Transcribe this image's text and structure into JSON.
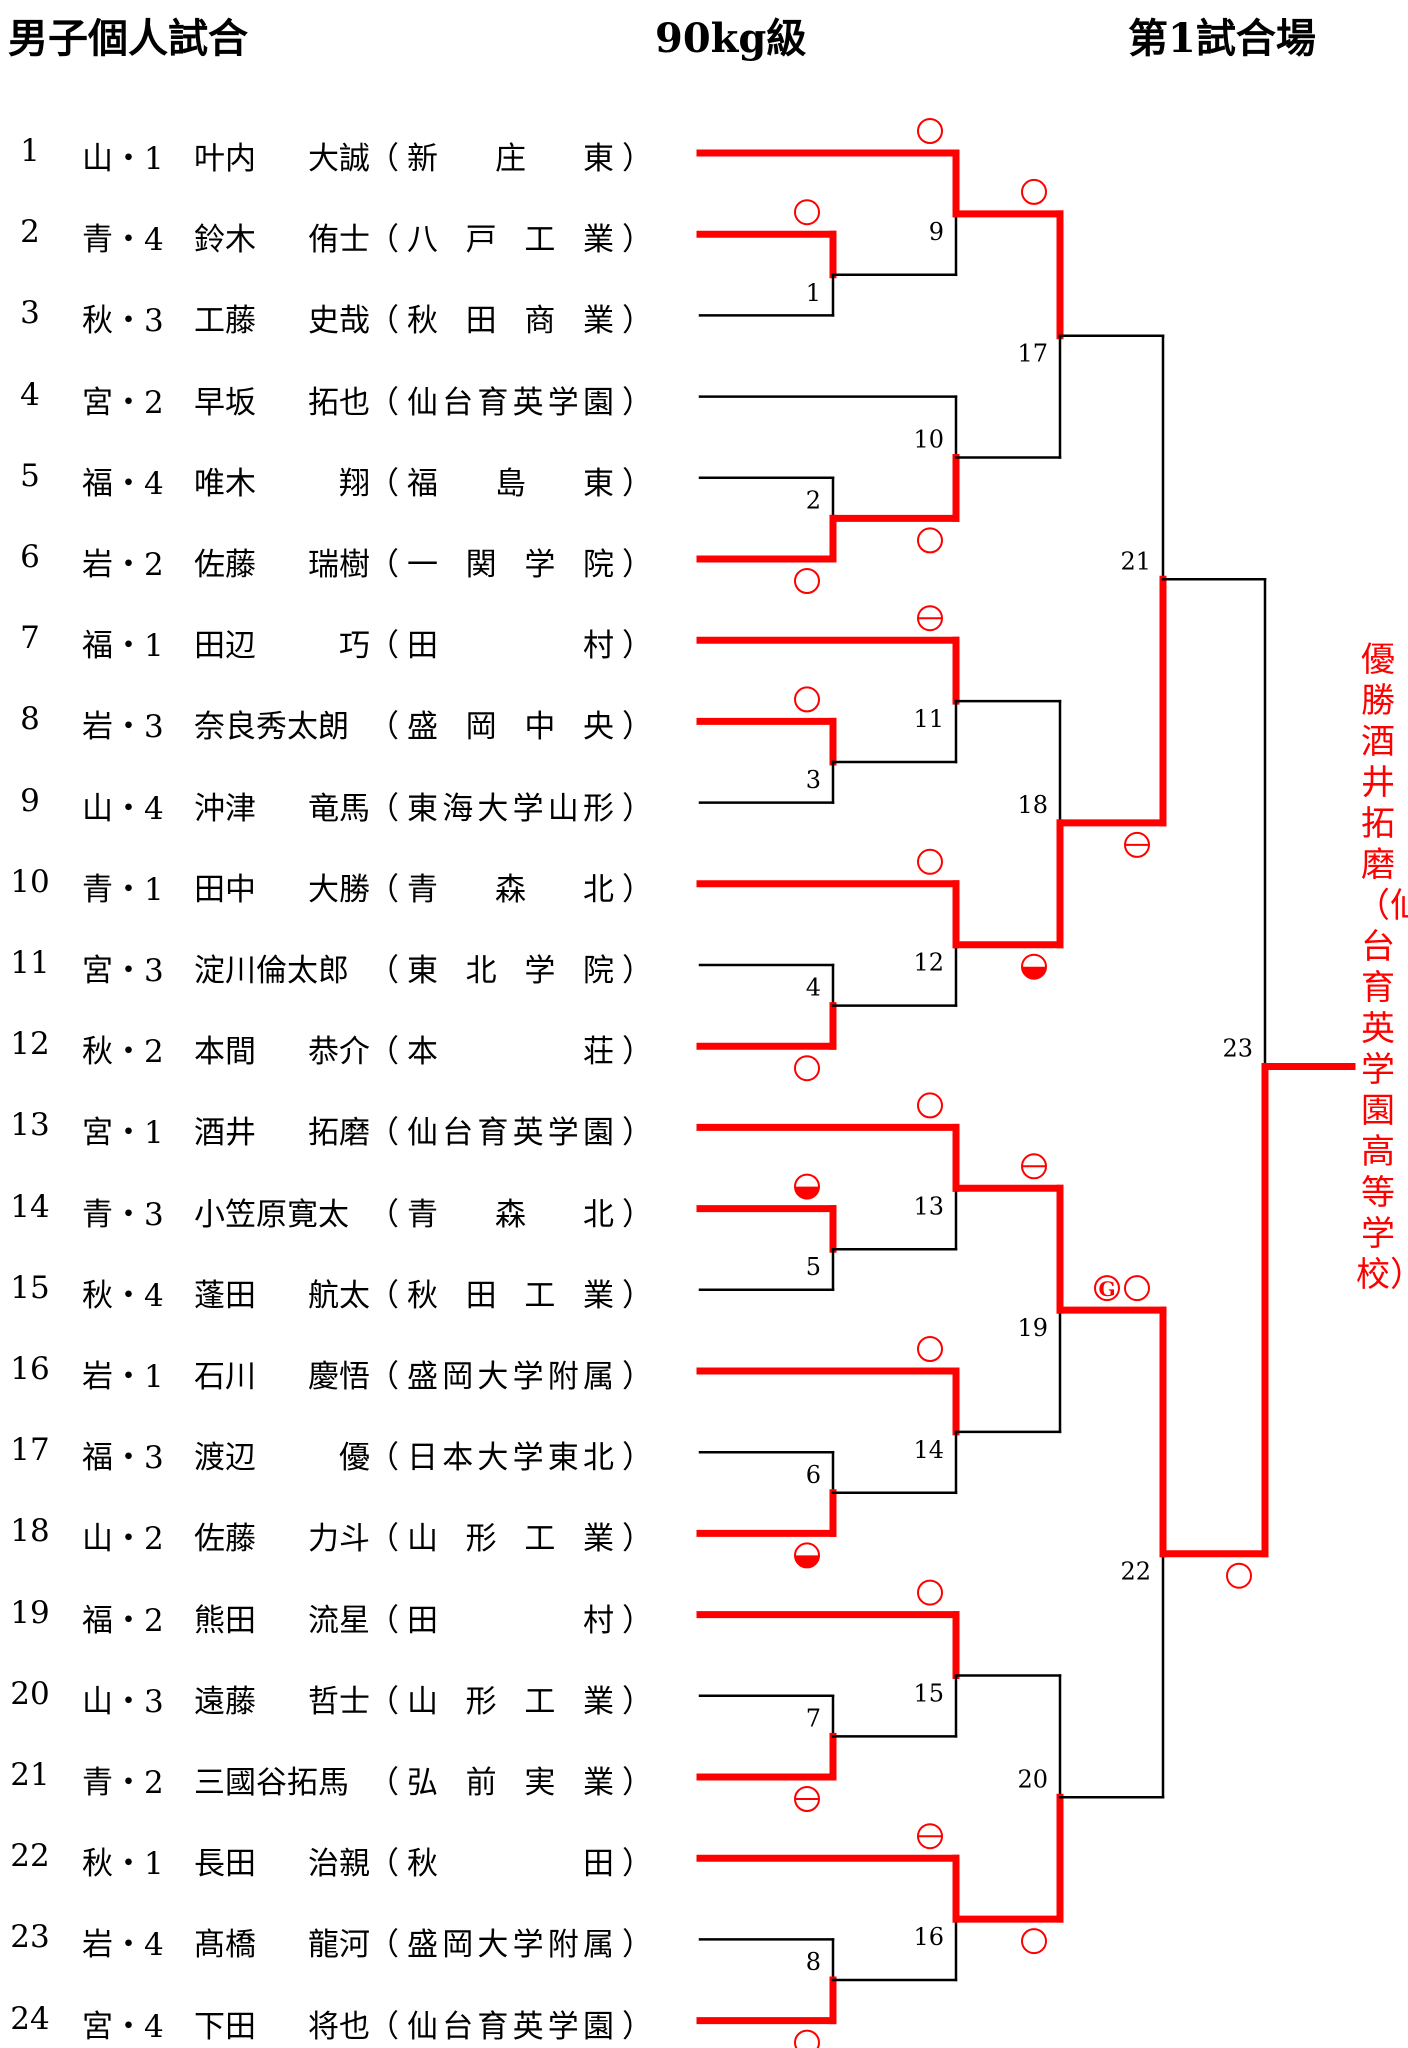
{
  "header": {
    "event": "男子個人試合",
    "weight_class": "90kg級",
    "venue": "第1試合場"
  },
  "players": [
    {
      "no": "1",
      "pref": "山・1",
      "name": [
        "叶内",
        "大誠"
      ],
      "school": [
        "新",
        "庄",
        "東"
      ]
    },
    {
      "no": "2",
      "pref": "青・4",
      "name": [
        "鈴木",
        "侑士"
      ],
      "school": [
        "八",
        "戸",
        "工",
        "業"
      ]
    },
    {
      "no": "3",
      "pref": "秋・3",
      "name": [
        "工藤",
        "史哉"
      ],
      "school": [
        "秋",
        "田",
        "商",
        "業"
      ]
    },
    {
      "no": "4",
      "pref": "宮・2",
      "name": [
        "早坂",
        "拓也"
      ],
      "school": [
        "仙",
        "台",
        "育",
        "英",
        "学",
        "園"
      ]
    },
    {
      "no": "5",
      "pref": "福・4",
      "name": [
        "唯木",
        "翔"
      ],
      "school": [
        "福",
        "島",
        "東"
      ]
    },
    {
      "no": "6",
      "pref": "岩・2",
      "name": [
        "佐藤",
        "瑞樹"
      ],
      "school": [
        "一",
        "関",
        "学",
        "院"
      ]
    },
    {
      "no": "7",
      "pref": "福・1",
      "name": [
        "田辺",
        "巧"
      ],
      "school": [
        "田",
        "村"
      ]
    },
    {
      "no": "8",
      "pref": "岩・3",
      "name": [
        "奈良秀太朗"
      ],
      "school": [
        "盛",
        "岡",
        "中",
        "央"
      ]
    },
    {
      "no": "9",
      "pref": "山・4",
      "name": [
        "沖津",
        "竜馬"
      ],
      "school": [
        "東",
        "海",
        "大",
        "学",
        "山",
        "形"
      ]
    },
    {
      "no": "10",
      "pref": "青・1",
      "name": [
        "田中",
        "大勝"
      ],
      "school": [
        "青",
        "森",
        "北"
      ]
    },
    {
      "no": "11",
      "pref": "宮・3",
      "name": [
        "淀川倫太郎"
      ],
      "school": [
        "東",
        "北",
        "学",
        "院"
      ]
    },
    {
      "no": "12",
      "pref": "秋・2",
      "name": [
        "本間",
        "恭介"
      ],
      "school": [
        "本",
        "荘"
      ]
    },
    {
      "no": "13",
      "pref": "宮・1",
      "name": [
        "酒井",
        "拓磨"
      ],
      "school": [
        "仙",
        "台",
        "育",
        "英",
        "学",
        "園"
      ]
    },
    {
      "no": "14",
      "pref": "青・3",
      "name": [
        "小笠原寛太"
      ],
      "school": [
        "青",
        "森",
        "北"
      ]
    },
    {
      "no": "15",
      "pref": "秋・4",
      "name": [
        "蓬田",
        "航太"
      ],
      "school": [
        "秋",
        "田",
        "工",
        "業"
      ]
    },
    {
      "no": "16",
      "pref": "岩・1",
      "name": [
        "石川",
        "慶悟"
      ],
      "school": [
        "盛",
        "岡",
        "大",
        "学",
        "附",
        "属"
      ]
    },
    {
      "no": "17",
      "pref": "福・3",
      "name": [
        "渡辺",
        "優"
      ],
      "school": [
        "日",
        "本",
        "大",
        "学",
        "東",
        "北"
      ]
    },
    {
      "no": "18",
      "pref": "山・2",
      "name": [
        "佐藤",
        "力斗"
      ],
      "school": [
        "山",
        "形",
        "工",
        "業"
      ]
    },
    {
      "no": "19",
      "pref": "福・2",
      "name": [
        "熊田",
        "流星"
      ],
      "school": [
        "田",
        "村"
      ]
    },
    {
      "no": "20",
      "pref": "山・3",
      "name": [
        "遠藤",
        "哲士"
      ],
      "school": [
        "山",
        "形",
        "工",
        "業"
      ]
    },
    {
      "no": "21",
      "pref": "青・2",
      "name": [
        "三國谷拓馬"
      ],
      "school": [
        "弘",
        "前",
        "実",
        "業"
      ]
    },
    {
      "no": "22",
      "pref": "秋・1",
      "name": [
        "長田",
        "治親"
      ],
      "school": [
        "秋",
        "田"
      ]
    },
    {
      "no": "23",
      "pref": "岩・4",
      "name": [
        "髙橋",
        "龍河"
      ],
      "school": [
        "盛",
        "岡",
        "大",
        "学",
        "附",
        "属"
      ]
    },
    {
      "no": "24",
      "pref": "宮・4",
      "name": [
        "下田",
        "将也"
      ],
      "school": [
        "仙",
        "台",
        "育",
        "英",
        "学",
        "園"
      ]
    }
  ],
  "matches": [
    {
      "no": "1",
      "a": "P2",
      "b": "P3",
      "winner": "a",
      "mark": "circle"
    },
    {
      "no": "2",
      "a": "P5",
      "b": "P6",
      "winner": "b",
      "mark": "circle"
    },
    {
      "no": "3",
      "a": "P8",
      "b": "P9",
      "winner": "a",
      "mark": "circle"
    },
    {
      "no": "4",
      "a": "P11",
      "b": "P12",
      "winner": "b",
      "mark": "circle"
    },
    {
      "no": "5",
      "a": "P14",
      "b": "P15",
      "winner": "a",
      "mark": "half"
    },
    {
      "no": "6",
      "a": "P17",
      "b": "P18",
      "winner": "b",
      "mark": "half"
    },
    {
      "no": "7",
      "a": "P20",
      "b": "P21",
      "winner": "b",
      "mark": "circle-line"
    },
    {
      "no": "8",
      "a": "P23",
      "b": "P24",
      "winner": "b",
      "mark": "circle"
    },
    {
      "no": "9",
      "a": "P1",
      "b": "M1",
      "winner": "a",
      "mark": "circle"
    },
    {
      "no": "10",
      "a": "P4",
      "b": "M2",
      "winner": "b",
      "mark": "circle"
    },
    {
      "no": "11",
      "a": "P7",
      "b": "M3",
      "winner": "a",
      "mark": "circle-line"
    },
    {
      "no": "12",
      "a": "P10",
      "b": "M4",
      "winner": "a",
      "mark": "circle"
    },
    {
      "no": "13",
      "a": "P13",
      "b": "M5",
      "winner": "a",
      "mark": "circle"
    },
    {
      "no": "14",
      "a": "P16",
      "b": "M6",
      "winner": "a",
      "mark": "circle"
    },
    {
      "no": "15",
      "a": "P19",
      "b": "M7",
      "winner": "a",
      "mark": "circle"
    },
    {
      "no": "16",
      "a": "P22",
      "b": "M8",
      "winner": "a",
      "mark": "circle-line"
    },
    {
      "no": "17",
      "a": "M9",
      "b": "M10",
      "winner": "a",
      "mark": "circle"
    },
    {
      "no": "18",
      "a": "M11",
      "b": "M12",
      "winner": "b",
      "mark": "half"
    },
    {
      "no": "19",
      "a": "M13",
      "b": "M14",
      "winner": "a",
      "mark": "circle-line"
    },
    {
      "no": "20",
      "a": "M15",
      "b": "M16",
      "winner": "b",
      "mark": "circle"
    },
    {
      "no": "21",
      "a": "M17",
      "b": "M18",
      "winner": "b",
      "mark": "circle-line"
    },
    {
      "no": "22",
      "a": "M19",
      "b": "M20",
      "winner": "a",
      "mark": "circle",
      "extra_mark": "G"
    },
    {
      "no": "23",
      "a": "M21",
      "b": "M22",
      "winner": "b",
      "mark": "circle"
    }
  ],
  "champion_text": "優勝　酒井　拓磨（仙台育英学園高等学校）",
  "colors": {
    "win": "#ff0000",
    "lose": "#000000"
  }
}
